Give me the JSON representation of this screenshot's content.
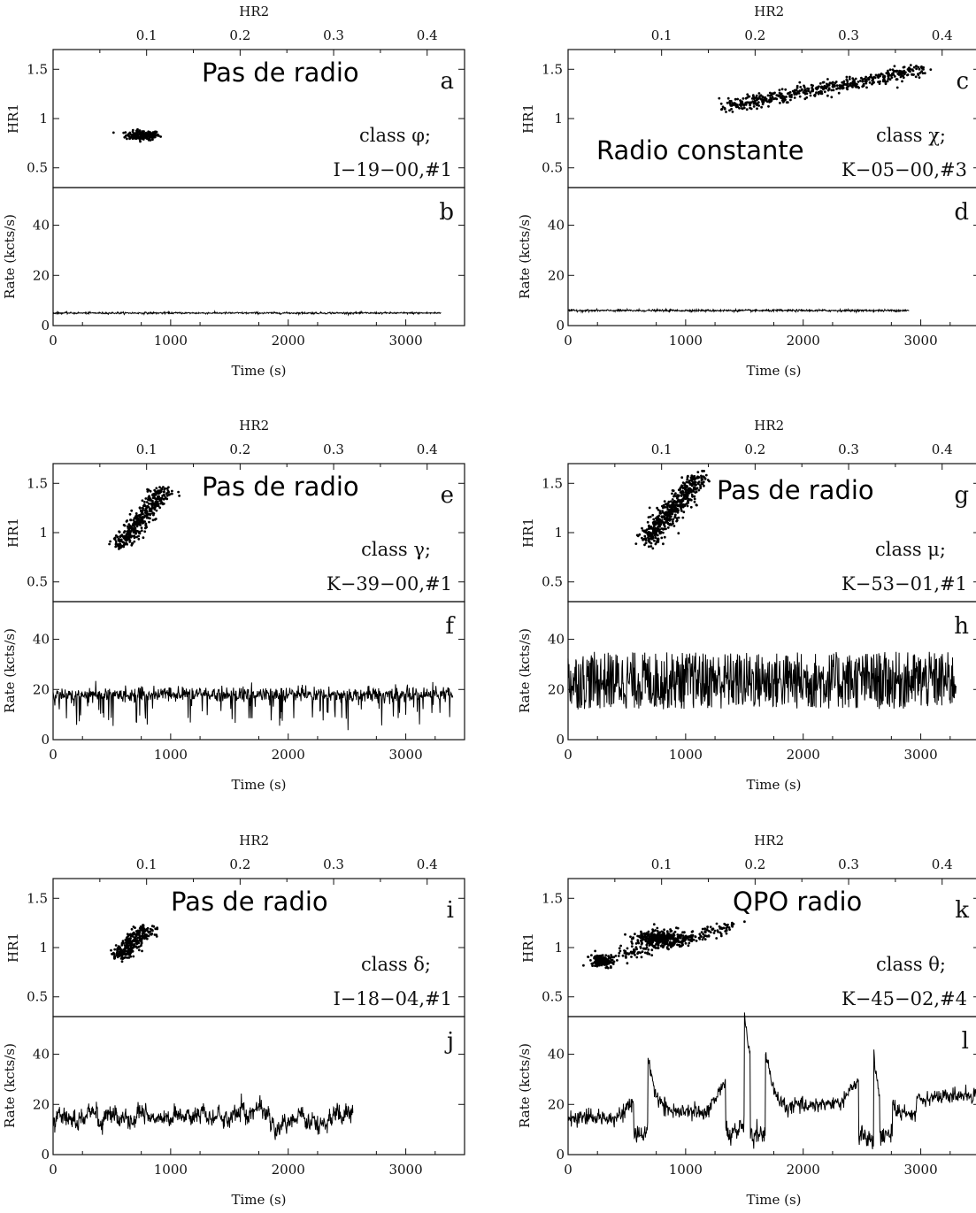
{
  "chart_data": [
    {
      "type": "scatter",
      "top_axis_label": "HR2",
      "top_ticks": [
        "0.1",
        "0.2",
        "0.3",
        "0.4"
      ],
      "upper": {
        "ylabel": "HR1",
        "yticks": [
          "0.5",
          "1",
          "1.5"
        ],
        "ylim": [
          0.3,
          1.7
        ],
        "letter": "a"
      },
      "lower": {
        "ylabel": "Rate (kcts/s)",
        "yticks": [
          "0",
          "20",
          "40"
        ],
        "ylim": [
          0,
          55
        ],
        "letter": "b"
      },
      "xlabel": "Time (s)",
      "xticks": [
        "0",
        "1000",
        "2000",
        "3000"
      ],
      "xlim": [
        0,
        3500
      ],
      "class_label": "class φ;",
      "obs_label": "I−19−00,#1",
      "annotation": "Pas de radio",
      "scatter_clusters": [
        {
          "hr2": 0.096,
          "hr1": 0.83,
          "spread_hr2": 0.018,
          "spread_hr1": 0.04,
          "n": 180
        }
      ],
      "rate_series": {
        "t_end": 3300,
        "mean": 5,
        "noise": 0.6,
        "style": "flat"
      }
    },
    {
      "type": "scatter",
      "top_axis_label": "HR2",
      "top_ticks": [
        "0.1",
        "0.2",
        "0.3",
        "0.4"
      ],
      "upper": {
        "ylabel": "HR1",
        "yticks": [
          "0.5",
          "1",
          "1.5"
        ],
        "ylim": [
          0.3,
          1.7
        ],
        "letter": "c"
      },
      "lower": {
        "ylabel": "Rate (kcts/s)",
        "yticks": [
          "0",
          "20",
          "40"
        ],
        "ylim": [
          0,
          55
        ],
        "letter": "d"
      },
      "xlabel": "Time (s)",
      "xticks": [
        "0",
        "1000",
        "2000",
        "3000"
      ],
      "xlim": [
        0,
        3500
      ],
      "class_label": "class χ;",
      "obs_label": "K−05−00,#3",
      "annotation": "Radio constante",
      "scatter_band": {
        "hr2_start": 0.17,
        "hr1_start": 1.12,
        "hr2_end": 0.38,
        "hr1_end": 1.5,
        "width_hr1": 0.07,
        "n": 500
      },
      "rate_series": {
        "t_end": 2900,
        "mean": 6,
        "noise": 0.7,
        "style": "flat"
      }
    },
    {
      "type": "scatter",
      "top_axis_label": "HR2",
      "top_ticks": [
        "0.1",
        "0.2",
        "0.3",
        "0.4"
      ],
      "upper": {
        "ylabel": "HR1",
        "yticks": [
          "0.5",
          "1",
          "1.5"
        ],
        "ylim": [
          0.3,
          1.7
        ],
        "letter": "e"
      },
      "lower": {
        "ylabel": "Rate (kcts/s)",
        "yticks": [
          "0",
          "20",
          "40"
        ],
        "ylim": [
          0,
          55
        ],
        "letter": "f"
      },
      "xlabel": "Time (s)",
      "xticks": [
        "0",
        "1000",
        "2000",
        "3000"
      ],
      "xlim": [
        0,
        3500
      ],
      "class_label": "class γ;",
      "obs_label": "K−39−00,#1",
      "annotation": "Pas de radio",
      "scatter_band": {
        "hr2_start": 0.07,
        "hr1_start": 0.85,
        "hr2_end": 0.12,
        "hr1_end": 1.45,
        "width_hr1": 0.05,
        "n": 400
      },
      "rate_series": {
        "t_end": 3400,
        "mean": 18,
        "noise": 2.5,
        "style": "dips",
        "dip_depth": 8
      }
    },
    {
      "type": "scatter",
      "top_axis_label": "HR2",
      "top_ticks": [
        "0.1",
        "0.2",
        "0.3",
        "0.4"
      ],
      "upper": {
        "ylabel": "HR1",
        "yticks": [
          "0.5",
          "1",
          "1.5"
        ],
        "ylim": [
          0.3,
          1.7
        ],
        "letter": "g"
      },
      "lower": {
        "ylabel": "Rate (kcts/s)",
        "yticks": [
          "0",
          "20",
          "40"
        ],
        "ylim": [
          0,
          55
        ],
        "letter": "h"
      },
      "xlabel": "Time (s)",
      "xticks": [
        "0",
        "1000",
        "2000",
        "3000"
      ],
      "xlim": [
        0,
        3500
      ],
      "class_label": "class μ;",
      "obs_label": "K−53−01,#1",
      "annotation": "Pas de radio",
      "scatter_band": {
        "hr2_start": 0.085,
        "hr1_start": 0.92,
        "hr2_end": 0.14,
        "hr1_end": 1.57,
        "width_hr1": 0.09,
        "n": 500
      },
      "rate_series": {
        "t_end": 3300,
        "mean": 21,
        "noise": 6,
        "style": "spiky",
        "spike_range": [
          12,
          35
        ]
      }
    },
    {
      "type": "scatter",
      "top_axis_label": "HR2",
      "top_ticks": [
        "0.1",
        "0.2",
        "0.3",
        "0.4"
      ],
      "upper": {
        "ylabel": "HR1",
        "yticks": [
          "0.5",
          "1",
          "1.5"
        ],
        "ylim": [
          0.3,
          1.7
        ],
        "letter": "i"
      },
      "lower": {
        "ylabel": "Rate (kcts/s)",
        "yticks": [
          "0",
          "20",
          "40"
        ],
        "ylim": [
          0,
          55
        ],
        "letter": "j"
      },
      "xlabel": "Time (s)",
      "xticks": [
        "0",
        "1000",
        "2000",
        "3000"
      ],
      "xlim": [
        0,
        3500
      ],
      "class_label": "class δ;",
      "obs_label": "I−18−04,#1",
      "annotation": "Pas de radio",
      "scatter_band": {
        "hr2_start": 0.07,
        "hr1_start": 0.9,
        "hr2_end": 0.1,
        "hr1_end": 1.2,
        "width_hr1": 0.05,
        "n": 300
      },
      "rate_series": {
        "t_end": 2550,
        "mean": 15,
        "noise": 2.8,
        "style": "wander"
      }
    },
    {
      "type": "scatter",
      "top_axis_label": "HR2",
      "top_ticks": [
        "0.1",
        "0.2",
        "0.3",
        "0.4"
      ],
      "upper": {
        "ylabel": "HR1",
        "yticks": [
          "0.5",
          "1",
          "1.5"
        ],
        "ylim": [
          0.3,
          1.7
        ],
        "letter": "k"
      },
      "lower": {
        "ylabel": "Rate (kcts/s)",
        "yticks": [
          "0",
          "20",
          "40"
        ],
        "ylim": [
          0,
          55
        ],
        "letter": "l"
      },
      "xlabel": "Time (s)",
      "xticks": [
        "0",
        "1000",
        "2000",
        "3000"
      ],
      "xlim": [
        0,
        3500
      ],
      "class_label": "class θ;",
      "obs_label": "K−45−02,#4",
      "annotation": "QPO radio",
      "scatter_clusters": [
        {
          "hr2": 0.035,
          "hr1": 0.87,
          "spread_hr2": 0.012,
          "spread_hr1": 0.05,
          "n": 160
        },
        {
          "hr2": 0.1,
          "hr1": 1.1,
          "spread_hr2": 0.028,
          "spread_hr1": 0.06,
          "n": 320
        }
      ],
      "scatter_band": {
        "hr2_start": 0.05,
        "hr1_start": 0.9,
        "hr2_end": 0.18,
        "hr1_end": 1.22,
        "width_hr1": 0.06,
        "n": 200
      },
      "rate_series": {
        "t_end": 3500,
        "mean": 15,
        "noise": 1.5,
        "style": "theta",
        "dips": [
          [
            560,
            680,
            38
          ],
          [
            1340,
            1500,
            50
          ],
          [
            1550,
            1680,
            42
          ],
          [
            2470,
            2600,
            44
          ],
          [
            2650,
            2760,
            20
          ]
        ]
      }
    }
  ]
}
